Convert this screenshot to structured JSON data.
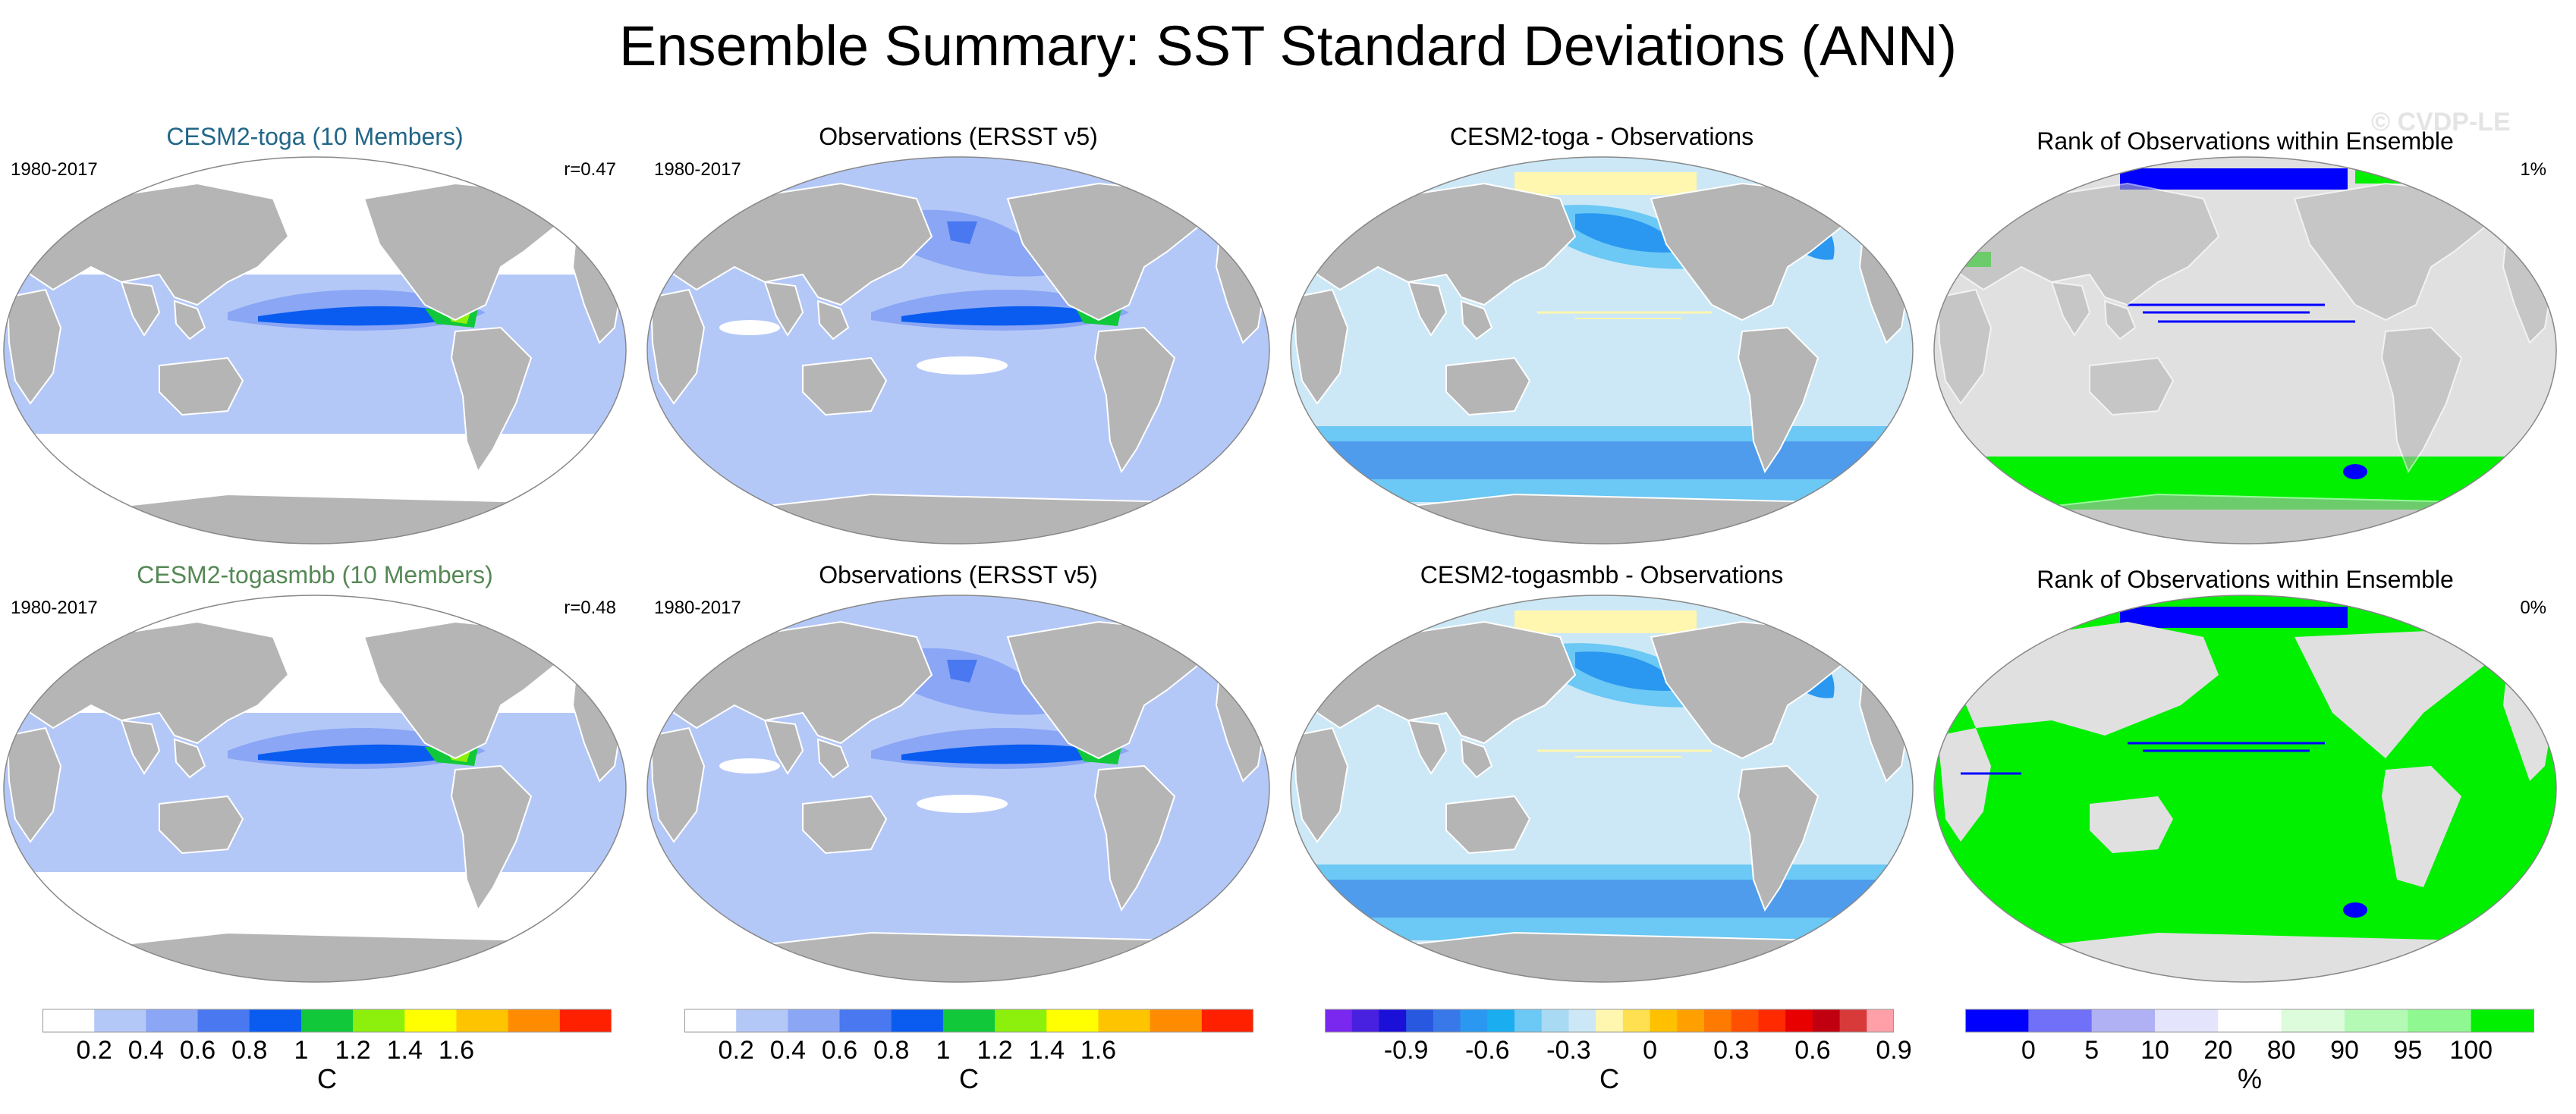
{
  "title": "Ensemble Summary: SST Standard Deviations (ANN)",
  "watermark": "© CVDP-LE",
  "rows": [
    {
      "model": {
        "title": "CESM2-toga (10 Members)",
        "title_color": "#226688",
        "period": "1980-2017",
        "r": "r=0.47"
      },
      "obs": {
        "title": "Observations (ERSST v5)",
        "period": "1980-2017"
      },
      "diff": {
        "title": "CESM2-toga - Observations"
      },
      "rank": {
        "title": "Rank of Observations within Ensemble",
        "pct": "1%"
      }
    },
    {
      "model": {
        "title": "CESM2-togasmbb (10 Members)",
        "title_color": "#558855",
        "period": "1980-2017",
        "r": "r=0.48"
      },
      "obs": {
        "title": "Observations (ERSST v5)",
        "period": "1980-2017"
      },
      "diff": {
        "title": "CESM2-togasmbb - Observations"
      },
      "rank": {
        "title": "Rank of Observations within Ensemble",
        "pct": "0%"
      }
    }
  ],
  "colorbars": [
    {
      "id": "std",
      "unit": "C",
      "colors": [
        "#ffffff",
        "#b4c8f8",
        "#8aa6f4",
        "#4a78f0",
        "#0a5cf0",
        "#10c83a",
        "#8cf00c",
        "#ffff00",
        "#ffc400",
        "#ff8c00",
        "#ff2000"
      ],
      "ticks": [
        "0.2",
        "0.4",
        "0.6",
        "0.8",
        "1",
        "1.2",
        "1.4",
        "1.6"
      ]
    },
    {
      "id": "std-obs",
      "unit": "C",
      "colors": [
        "#ffffff",
        "#b4c8f8",
        "#8aa6f4",
        "#4a78f0",
        "#0a5cf0",
        "#10c83a",
        "#8cf00c",
        "#ffff00",
        "#ffc400",
        "#ff8c00",
        "#ff2000"
      ],
      "ticks": [
        "0.2",
        "0.4",
        "0.6",
        "0.8",
        "1",
        "1.2",
        "1.4",
        "1.6"
      ]
    },
    {
      "id": "diff",
      "unit": "C",
      "colors": [
        "#7a28f0",
        "#4820e0",
        "#1a10d8",
        "#2858e0",
        "#3878e8",
        "#2a98f0",
        "#1aaef0",
        "#6cc8f4",
        "#a8daf4",
        "#cce8f6",
        "#fff6b0",
        "#ffe050",
        "#ffc000",
        "#ffa000",
        "#ff7a00",
        "#ff5000",
        "#ff2a00",
        "#e80000",
        "#c00010",
        "#d83a3a",
        "#ffa0a8"
      ],
      "ticks": [
        "-0.9",
        "-0.6",
        "-0.3",
        "0",
        "0.3",
        "0.6",
        "0.9"
      ]
    },
    {
      "id": "rank",
      "unit": "%",
      "colors": [
        "#0000ff",
        "#7070f8",
        "#b0b0f4",
        "#e4e4fc",
        "#ffffff",
        "#dcfcdc",
        "#b4fab4",
        "#90f890",
        "#00f000"
      ],
      "ticks": [
        "0",
        "5",
        "10",
        "20",
        "80",
        "90",
        "95",
        "100"
      ]
    }
  ]
}
